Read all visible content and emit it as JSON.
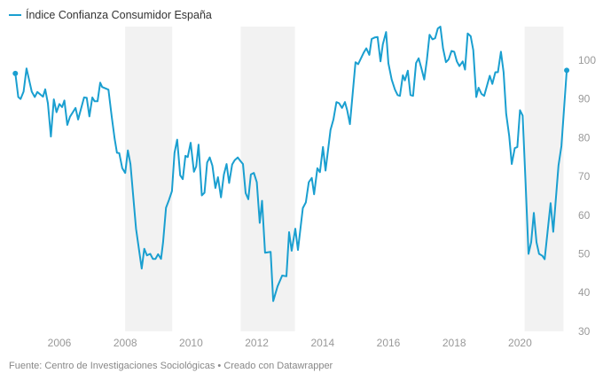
{
  "chart_data": {
    "type": "line",
    "title": "",
    "xlabel": "",
    "ylabel": "",
    "legend_placement": "top-left",
    "grid": false,
    "xlim": [
      2004.6,
      2021.5
    ],
    "ylim": [
      30,
      108.7
    ],
    "x_ticks": [
      2006,
      2008,
      2010,
      2012,
      2014,
      2016,
      2018,
      2020
    ],
    "x_tick_labels": [
      "2006",
      "2008",
      "2010",
      "2012",
      "2014",
      "2016",
      "2018",
      "2020"
    ],
    "y_ticks": [
      30,
      40,
      50,
      60,
      70,
      80,
      90,
      100
    ],
    "y_tick_labels": [
      "30",
      "40",
      "50",
      "60",
      "70",
      "80",
      "90",
      "100"
    ],
    "shaded_ranges": [
      [
        2008.0,
        2009.43
      ],
      [
        2011.51,
        2013.16
      ],
      [
        2020.14,
        2021.32
      ]
    ],
    "shade_color": "#f2f2f2",
    "series": [
      {
        "name": "Índice Confianza Consumidor España",
        "color": "#1a9fd0",
        "points": [
          [
            2004.66,
            96.6
          ],
          [
            2004.75,
            90.5
          ],
          [
            2004.82,
            90.0
          ],
          [
            2004.91,
            91.9
          ],
          [
            2005.0,
            97.9
          ],
          [
            2005.16,
            91.9
          ],
          [
            2005.25,
            90.5
          ],
          [
            2005.33,
            91.8
          ],
          [
            2005.5,
            90.6
          ],
          [
            2005.57,
            92.5
          ],
          [
            2005.65,
            88.9
          ],
          [
            2005.74,
            80.3
          ],
          [
            2005.83,
            89.9
          ],
          [
            2005.91,
            86.6
          ],
          [
            2006.0,
            88.7
          ],
          [
            2006.08,
            87.9
          ],
          [
            2006.15,
            89.6
          ],
          [
            2006.24,
            83.3
          ],
          [
            2006.32,
            85.4
          ],
          [
            2006.49,
            87.7
          ],
          [
            2006.57,
            84.7
          ],
          [
            2006.75,
            90.4
          ],
          [
            2006.83,
            90.3
          ],
          [
            2006.91,
            85.5
          ],
          [
            2007.0,
            90.4
          ],
          [
            2007.07,
            89.4
          ],
          [
            2007.16,
            89.4
          ],
          [
            2007.24,
            94.2
          ],
          [
            2007.3,
            93.1
          ],
          [
            2007.49,
            92.4
          ],
          [
            2007.59,
            85.4
          ],
          [
            2007.68,
            79.7
          ],
          [
            2007.75,
            76.1
          ],
          [
            2007.82,
            76.0
          ],
          [
            2007.91,
            72.1
          ],
          [
            2008.0,
            70.9
          ],
          [
            2008.08,
            76.7
          ],
          [
            2008.16,
            73.2
          ],
          [
            2008.33,
            56.5
          ],
          [
            2008.5,
            46.2
          ],
          [
            2008.58,
            51.3
          ],
          [
            2008.66,
            49.6
          ],
          [
            2008.76,
            50.0
          ],
          [
            2008.84,
            48.7
          ],
          [
            2008.92,
            48.7
          ],
          [
            2009.0,
            49.9
          ],
          [
            2009.09,
            48.7
          ],
          [
            2009.15,
            53.0
          ],
          [
            2009.24,
            61.9
          ],
          [
            2009.33,
            63.9
          ],
          [
            2009.42,
            66.2
          ],
          [
            2009.5,
            76.1
          ],
          [
            2009.58,
            79.5
          ],
          [
            2009.67,
            70.3
          ],
          [
            2009.75,
            69.3
          ],
          [
            2009.83,
            75.3
          ],
          [
            2009.9,
            75.0
          ],
          [
            2009.99,
            78.7
          ],
          [
            2010.09,
            71.2
          ],
          [
            2010.16,
            72.6
          ],
          [
            2010.23,
            78.2
          ],
          [
            2010.33,
            65.1
          ],
          [
            2010.41,
            65.8
          ],
          [
            2010.49,
            73.6
          ],
          [
            2010.57,
            74.9
          ],
          [
            2010.65,
            72.8
          ],
          [
            2010.74,
            67.0
          ],
          [
            2010.82,
            69.8
          ],
          [
            2010.91,
            64.6
          ],
          [
            2011.0,
            70.5
          ],
          [
            2011.08,
            73.2
          ],
          [
            2011.16,
            68.3
          ],
          [
            2011.25,
            73.1
          ],
          [
            2011.33,
            74.2
          ],
          [
            2011.42,
            74.9
          ],
          [
            2011.49,
            74.1
          ],
          [
            2011.58,
            73.2
          ],
          [
            2011.66,
            65.7
          ],
          [
            2011.74,
            64.1
          ],
          [
            2011.82,
            70.5
          ],
          [
            2011.91,
            70.9
          ],
          [
            2012.0,
            68.5
          ],
          [
            2012.09,
            58.0
          ],
          [
            2012.16,
            63.7
          ],
          [
            2012.25,
            50.3
          ],
          [
            2012.42,
            50.5
          ],
          [
            2012.5,
            37.8
          ],
          [
            2012.63,
            41.6
          ],
          [
            2012.77,
            44.4
          ],
          [
            2012.9,
            44.2
          ],
          [
            2012.98,
            55.6
          ],
          [
            2013.06,
            50.8
          ],
          [
            2013.17,
            56.5
          ],
          [
            2013.25,
            51.0
          ],
          [
            2013.4,
            61.8
          ],
          [
            2013.49,
            63.3
          ],
          [
            2013.58,
            68.5
          ],
          [
            2013.67,
            69.6
          ],
          [
            2013.74,
            65.4
          ],
          [
            2013.84,
            72.1
          ],
          [
            2013.92,
            71.1
          ],
          [
            2014.01,
            77.6
          ],
          [
            2014.09,
            71.5
          ],
          [
            2014.24,
            82.0
          ],
          [
            2014.33,
            84.7
          ],
          [
            2014.42,
            89.2
          ],
          [
            2014.5,
            88.9
          ],
          [
            2014.59,
            87.7
          ],
          [
            2014.68,
            89.2
          ],
          [
            2014.75,
            87.0
          ],
          [
            2014.83,
            83.5
          ],
          [
            2014.91,
            91.1
          ],
          [
            2015.0,
            99.5
          ],
          [
            2015.08,
            99.0
          ],
          [
            2015.25,
            102.0
          ],
          [
            2015.33,
            103.1
          ],
          [
            2015.42,
            101.4
          ],
          [
            2015.49,
            105.5
          ],
          [
            2015.59,
            105.9
          ],
          [
            2015.67,
            106.0
          ],
          [
            2015.76,
            99.7
          ],
          [
            2015.83,
            104.1
          ],
          [
            2015.93,
            107.3
          ],
          [
            2016.0,
            99.2
          ],
          [
            2016.1,
            95.0
          ],
          [
            2016.2,
            92.4
          ],
          [
            2016.28,
            91.0
          ],
          [
            2016.35,
            90.8
          ],
          [
            2016.44,
            96.1
          ],
          [
            2016.5,
            94.8
          ],
          [
            2016.59,
            97.3
          ],
          [
            2016.67,
            91.0
          ],
          [
            2016.75,
            90.8
          ],
          [
            2016.84,
            99.3
          ],
          [
            2016.92,
            100.5
          ],
          [
            2017.0,
            98.0
          ],
          [
            2017.09,
            95.0
          ],
          [
            2017.17,
            100.1
          ],
          [
            2017.25,
            106.6
          ],
          [
            2017.34,
            105.4
          ],
          [
            2017.42,
            105.7
          ],
          [
            2017.5,
            108.2
          ],
          [
            2017.58,
            108.7
          ],
          [
            2017.66,
            103.1
          ],
          [
            2017.75,
            99.5
          ],
          [
            2017.83,
            100.2
          ],
          [
            2017.92,
            102.4
          ],
          [
            2018.0,
            102.2
          ],
          [
            2018.08,
            99.7
          ],
          [
            2018.16,
            98.5
          ],
          [
            2018.26,
            99.7
          ],
          [
            2018.33,
            97.6
          ],
          [
            2018.41,
            106.9
          ],
          [
            2018.5,
            106.2
          ],
          [
            2018.58,
            102.6
          ],
          [
            2018.67,
            90.5
          ],
          [
            2018.74,
            92.9
          ],
          [
            2018.83,
            91.3
          ],
          [
            2018.91,
            90.8
          ],
          [
            2019.08,
            96.0
          ],
          [
            2019.16,
            93.9
          ],
          [
            2019.25,
            96.9
          ],
          [
            2019.33,
            96.9
          ],
          [
            2019.42,
            102.2
          ],
          [
            2019.5,
            96.9
          ],
          [
            2019.58,
            86.2
          ],
          [
            2019.67,
            80.5
          ],
          [
            2019.75,
            73.2
          ],
          [
            2019.84,
            77.3
          ],
          [
            2019.92,
            77.6
          ],
          [
            2020.0,
            87.1
          ],
          [
            2020.08,
            85.7
          ],
          [
            2020.17,
            68.3
          ],
          [
            2020.26,
            50.0
          ],
          [
            2020.34,
            53.0
          ],
          [
            2020.42,
            60.6
          ],
          [
            2020.5,
            53.0
          ],
          [
            2020.58,
            50.0
          ],
          [
            2020.68,
            49.5
          ],
          [
            2020.75,
            48.6
          ],
          [
            2020.93,
            63.1
          ],
          [
            2021.01,
            55.7
          ],
          [
            2021.17,
            72.8
          ],
          [
            2021.26,
            77.8
          ],
          [
            2021.42,
            97.4
          ]
        ]
      }
    ]
  },
  "legend": {
    "label": "Índice Confianza Consumidor España"
  },
  "footer": {
    "source": "Fuente: Centro de Investigaciones Sociológicas • Creado con Datawrapper"
  }
}
